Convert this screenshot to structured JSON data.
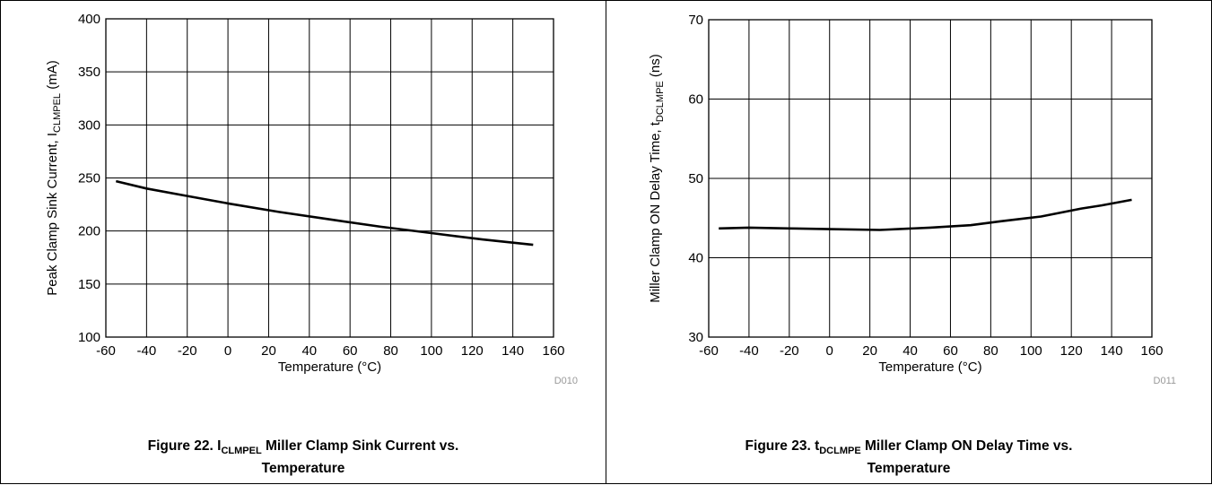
{
  "chart_data": [
    {
      "type": "line",
      "ylabel_main": "Peak Clamp Sink Current, I",
      "ylabel_sub": "CLMPEL",
      "ylabel_unit": " (mA)",
      "xlabel": "Temperature (°C)",
      "code": "D010",
      "xlim": [
        -60,
        160
      ],
      "ylim": [
        100,
        400
      ],
      "xticks": [
        "-60",
        "-40",
        "-20",
        "0",
        "20",
        "40",
        "60",
        "80",
        "100",
        "120",
        "140",
        "160"
      ],
      "yticks": [
        "100",
        "150",
        "200",
        "250",
        "300",
        "350",
        "400"
      ],
      "grid": true,
      "series": [
        {
          "x": [
            -55,
            -40,
            -20,
            0,
            25,
            50,
            75,
            100,
            125,
            150
          ],
          "y": [
            247,
            240,
            233,
            226,
            218,
            211,
            204,
            198,
            192,
            187
          ]
        }
      ],
      "caption": {
        "prefix": "Figure 22. I",
        "sub": "CLMPEL",
        "rest": " Miller Clamp Sink Current vs.",
        "line2": "Temperature"
      }
    },
    {
      "type": "line",
      "ylabel_main": "Miller Clamp ON Delay Time, t",
      "ylabel_sub": "DCLMPE",
      "ylabel_unit": " (ns)",
      "xlabel": "Temperature (°C)",
      "code": "D011",
      "xlim": [
        -60,
        160
      ],
      "ylim": [
        30,
        70
      ],
      "xticks": [
        "-60",
        "-40",
        "-20",
        "0",
        "20",
        "40",
        "60",
        "80",
        "100",
        "120",
        "140",
        "160"
      ],
      "yticks": [
        "30",
        "40",
        "50",
        "60",
        "70"
      ],
      "grid": true,
      "series": [
        {
          "x": [
            -55,
            -40,
            -20,
            0,
            25,
            50,
            70,
            85,
            105,
            125,
            135,
            150
          ],
          "y": [
            43.7,
            43.8,
            43.7,
            43.6,
            43.5,
            43.8,
            44.1,
            44.6,
            45.2,
            46.2,
            46.6,
            47.3
          ]
        }
      ],
      "caption": {
        "prefix": "Figure 23. t",
        "sub": "DCLMPE",
        "rest": " Miller Clamp ON Delay Time vs.",
        "line2": "Temperature"
      }
    }
  ]
}
